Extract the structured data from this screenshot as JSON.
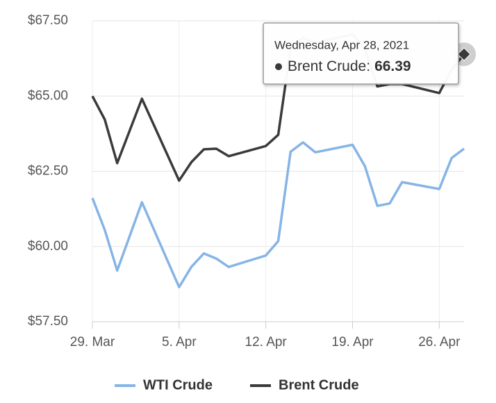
{
  "chart_data": {
    "type": "line",
    "x": [
      "2021-03-29",
      "2021-03-30",
      "2021-03-31",
      "2021-04-02",
      "2021-04-05",
      "2021-04-06",
      "2021-04-07",
      "2021-04-08",
      "2021-04-09",
      "2021-04-12",
      "2021-04-13",
      "2021-04-14",
      "2021-04-15",
      "2021-04-16",
      "2021-04-19",
      "2021-04-20",
      "2021-04-21",
      "2021-04-22",
      "2021-04-23",
      "2021-04-26",
      "2021-04-27",
      "2021-04-28"
    ],
    "series": [
      {
        "name": "WTI Crude",
        "color": "#86b4e6",
        "values": [
          61.61,
          60.55,
          59.2,
          61.47,
          58.65,
          59.33,
          59.77,
          59.6,
          59.32,
          59.7,
          60.18,
          63.15,
          63.46,
          63.13,
          63.38,
          62.67,
          61.35,
          61.43,
          62.14,
          61.91,
          62.94,
          63.25
        ]
      },
      {
        "name": "Brent Crude",
        "color": "#3a3a3c",
        "values": [
          65.0,
          64.22,
          62.77,
          64.91,
          62.19,
          62.81,
          63.23,
          63.25,
          63.0,
          63.34,
          63.71,
          66.58,
          66.94,
          66.77,
          67.05,
          66.57,
          65.32,
          65.4,
          65.4,
          65.1,
          65.88,
          66.39
        ]
      }
    ],
    "xlim": [
      "2021-03-29",
      "2021-04-28"
    ],
    "xticks": [
      {
        "value": "2021-03-29",
        "label": "29. Mar"
      },
      {
        "value": "2021-04-05",
        "label": "5. Apr"
      },
      {
        "value": "2021-04-12",
        "label": "12. Apr"
      },
      {
        "value": "2021-04-19",
        "label": "19. Apr"
      },
      {
        "value": "2021-04-26",
        "label": "26. Apr"
      }
    ],
    "ylim": [
      57.5,
      67.5
    ],
    "yticks": [
      {
        "value": 57.5,
        "label": "$57.50"
      },
      {
        "value": 60,
        "label": "$60.00"
      },
      {
        "value": 62.5,
        "label": "$62.50"
      },
      {
        "value": 65,
        "label": "$65.00"
      },
      {
        "value": 67.5,
        "label": "$67.50"
      }
    ],
    "grid": true,
    "legend": "bottom",
    "tooltip": {
      "header": "Wednesday, Apr 28, 2021",
      "label": "Brent Crude:"
    }
  }
}
